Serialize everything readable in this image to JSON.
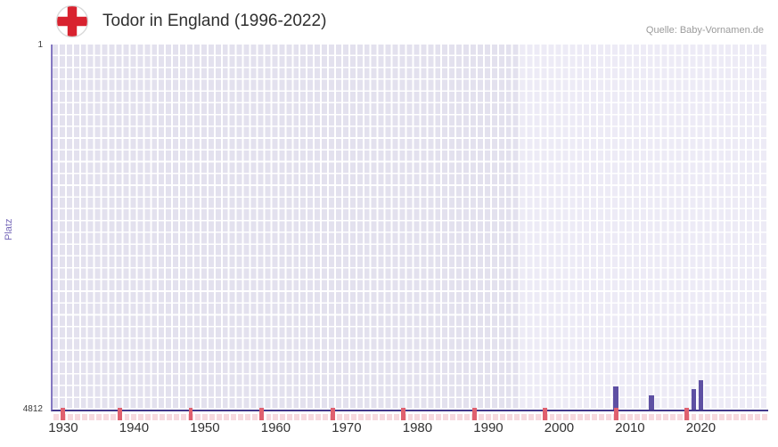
{
  "icons": {
    "flag": "england-flag-icon"
  },
  "chart_data": {
    "type": "bar",
    "title": "Todor in England (1996-2022)",
    "source": "Quelle: Baby-Vornamen.de",
    "ylabel": "Platz",
    "xlabel": "",
    "legend": false,
    "grid": true,
    "y_axis": {
      "top_label": "1",
      "bottom_label": "4812",
      "min": 1,
      "max": 4812,
      "inverted": true
    },
    "x_axis": {
      "start_year": 1929,
      "end_year": 2029,
      "tick_years": [
        1930,
        1940,
        1950,
        1960,
        1970,
        1980,
        1990,
        2000,
        2010,
        2020
      ]
    },
    "highlight_period_start": 1995,
    "series": [
      {
        "year": 2008,
        "rank": 4510
      },
      {
        "year": 2013,
        "rank": 4620
      },
      {
        "year": 2019,
        "rank": 4540
      },
      {
        "year": 2020,
        "rank": 4430
      }
    ],
    "axis_marker_years": [
      1930,
      1938,
      1948,
      1958,
      1968,
      1978,
      1988,
      1998,
      2008,
      2018
    ],
    "colors": {
      "bar": "#5e50a3",
      "plot_bg": "#e3e1ee",
      "plot_bg_highlight": "#edebf6",
      "grid_line": "#ffffff",
      "axis_line_bottom": "#44398b",
      "axis_line_left": "#8579c2",
      "y_label": "#7668b8",
      "tick_label": "#333333",
      "title": "#303030",
      "source": "#9b9b9b",
      "marker_light": "#f7d9de",
      "marker_dark": "#e0606f",
      "flag_cross": "#d8222f"
    }
  }
}
